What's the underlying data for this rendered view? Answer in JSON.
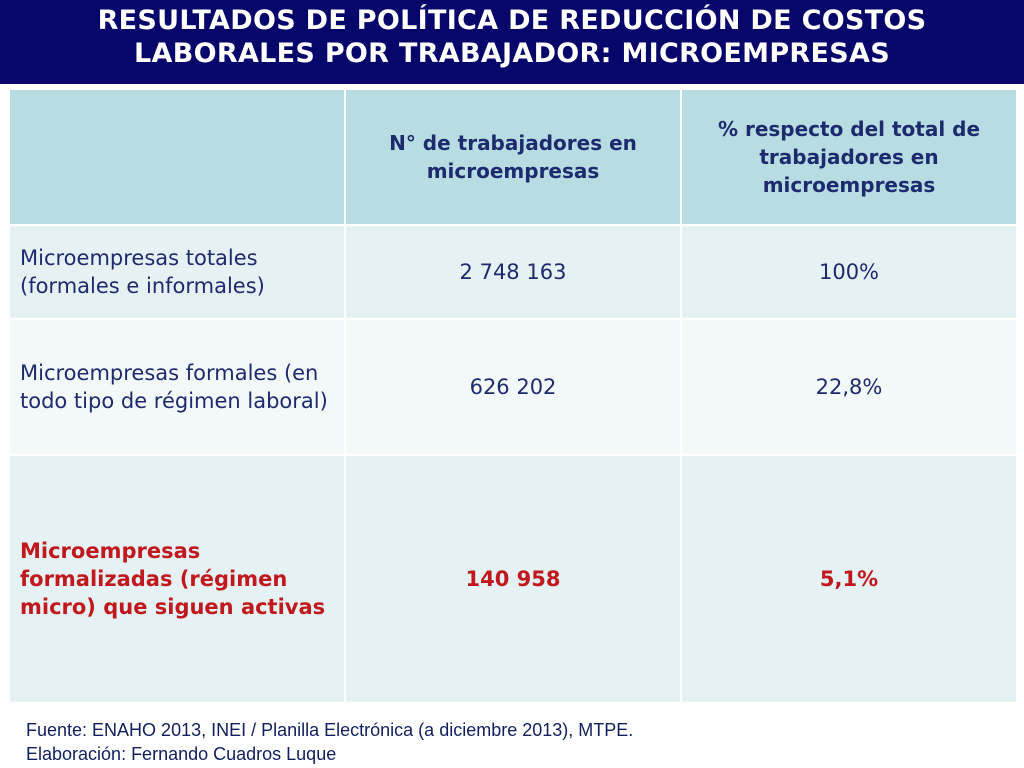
{
  "title": {
    "line1": "RESULTADOS DE POLÍTICA DE REDUCCIÓN DE COSTOS",
    "line2": "LABORALES POR TRABAJADOR: MICROEMPRESAS"
  },
  "table": {
    "headers": [
      "",
      "N° de trabajadores en microempresas",
      "% respecto del total de trabajadores en microempresas"
    ],
    "rows": [
      {
        "label": "Microempresas totales (formales e informales)",
        "workers": "2 748 163",
        "percent": "100%"
      },
      {
        "label": "Microempresas formales (en todo tipo de régimen laboral)",
        "workers": "626 202",
        "percent": "22,8%"
      },
      {
        "label": "Microempresas formalizadas (régimen micro) que siguen activas",
        "workers": "140 958",
        "percent": "5,1%"
      }
    ]
  },
  "footer": {
    "source": "Fuente: ENAHO 2013, INEI / Planilla Electrónica (a diciembre 2013), MTPE.",
    "author": "Elaboración: Fernando Cuadros Luque"
  },
  "colors": {
    "title_bg": "#06066b",
    "header_bg": "#b7dde2",
    "highlight_text": "#c0181c",
    "body_text": "#1e2a6e"
  }
}
